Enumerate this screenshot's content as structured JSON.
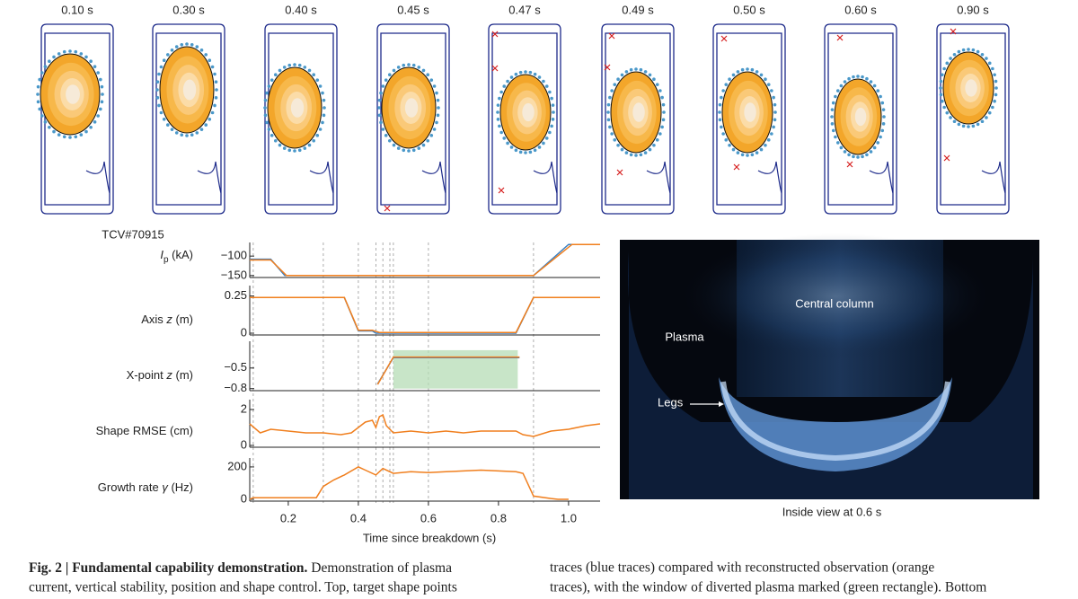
{
  "snapshots": {
    "times": [
      {
        "value": 0.1,
        "label": "0.10 s"
      },
      {
        "value": 0.3,
        "label": "0.30 s"
      },
      {
        "value": 0.4,
        "label": "0.40 s"
      },
      {
        "value": 0.45,
        "label": "0.45 s"
      },
      {
        "value": 0.47,
        "label": "0.47 s"
      },
      {
        "value": 0.49,
        "label": "0.49 s"
      },
      {
        "value": 0.5,
        "label": "0.50 s"
      },
      {
        "value": 0.6,
        "label": "0.60 s"
      },
      {
        "value": 0.9,
        "label": "0.90 s"
      }
    ]
  },
  "traces": {
    "shot": "TCV#70915",
    "xlim": [
      0.09,
      1.09
    ],
    "xticks": [
      0.2,
      0.4,
      0.6,
      0.8,
      {
        "value": 1,
        "label": "1.0"
      }
    ],
    "xlabel": "Time since breakdown (s)",
    "panels": [
      {
        "label": {
          "symbol": "I",
          "subscript": "p",
          "unit": " (kA)"
        },
        "ylim": [
          -155,
          -65
        ],
        "yticks": [
          {
            "value": -100,
            "label": "−100"
          },
          {
            "value": -150,
            "label": "−150"
          }
        ],
        "series": [
          {
            "color": "#3a7fc1",
            "x": [
              0.09,
              0.15,
              0.19,
              0.9,
              1.0,
              1.09
            ],
            "values": [
              -108,
              -108,
              -150,
              -150,
              -70,
              -70
            ]
          },
          {
            "color": "#f07f1e",
            "x": [
              0.09,
              0.15,
              0.195,
              0.9,
              1.01,
              1.09
            ],
            "values": [
              -110,
              -110,
              -150,
              -150,
              -70,
              -70
            ]
          }
        ]
      },
      {
        "label": {
          "text": "Axis ",
          "var": "z",
          "unit": " (m)"
        },
        "ylim": [
          -0.012,
          0.32
        ],
        "yticks": [
          0.25,
          0
        ],
        "series": [
          {
            "color": "#3a7fc1",
            "x": [
              0.09,
              0.36,
              0.4,
              0.44,
              0.45,
              0.85,
              0.9,
              1.09
            ],
            "values": [
              0.24,
              0.24,
              0.015,
              0.015,
              0,
              0,
              0.24,
              0.24
            ]
          },
          {
            "color": "#f07f1e",
            "x": [
              0.09,
              0.36,
              0.4,
              0.44,
              0.46,
              0.85,
              0.9,
              1.09
            ],
            "values": [
              0.24,
              0.24,
              0.02,
              0.02,
              0.005,
              0.005,
              0.24,
              0.24
            ]
          }
        ]
      },
      {
        "label": {
          "text": "X-point ",
          "var": "z",
          "unit": " (m)"
        },
        "ylim": [
          -0.83,
          -0.11
        ],
        "yticks": [
          {
            "value": -0.5,
            "label": "−0.5"
          },
          {
            "value": -0.8,
            "label": "−0.8"
          }
        ],
        "window": [
          0.5,
          0.855,
          -0.8,
          -0.24
        ],
        "series": [
          {
            "color": "#3a7fc1",
            "x": [
              0.455,
              0.5,
              0.86
            ],
            "values": [
              -0.73,
              -0.35,
              -0.35
            ]
          },
          {
            "color": "#f07f1e",
            "x": [
              0.455,
              0.5,
              0.86
            ],
            "values": [
              -0.74,
              -0.34,
              -0.34
            ]
          }
        ]
      },
      {
        "label": {
          "text": "Shape RMSE (cm)"
        },
        "ylim": [
          -0.1,
          2.55
        ],
        "yticks": [
          2,
          0
        ],
        "series": [
          {
            "color": "#f07f1e",
            "x": [
              0.09,
              0.12,
              0.15,
              0.2,
              0.25,
              0.3,
              0.35,
              0.38,
              0.4,
              0.42,
              0.44,
              0.45,
              0.46,
              0.47,
              0.48,
              0.5,
              0.55,
              0.6,
              0.65,
              0.7,
              0.75,
              0.8,
              0.85,
              0.87,
              0.9,
              0.95,
              1.0,
              1.05,
              1.09
            ],
            "values": [
              1.2,
              0.7,
              0.9,
              0.8,
              0.7,
              0.7,
              0.6,
              0.7,
              1.0,
              1.3,
              1.4,
              1.0,
              1.6,
              1.7,
              1.1,
              0.7,
              0.8,
              0.7,
              0.8,
              0.7,
              0.8,
              0.8,
              0.8,
              0.6,
              0.5,
              0.8,
              0.9,
              1.1,
              1.2
            ]
          }
        ]
      },
      {
        "label": {
          "text": "Growth rate ",
          "var": "γ",
          "unit": " (Hz)"
        },
        "ylim": [
          -11,
          255
        ],
        "yticks": [
          200,
          0
        ],
        "series": [
          {
            "color": "#f07f1e",
            "x": [
              0.09,
              0.1,
              0.28,
              0.3,
              0.33,
              0.36,
              0.4,
              0.42,
              0.45,
              0.47,
              0.5,
              0.55,
              0.6,
              0.65,
              0.7,
              0.75,
              0.8,
              0.85,
              0.87,
              0.9,
              0.95,
              0.97,
              1.0
            ],
            "values": [
              0,
              10,
              10,
              80,
              120,
              150,
              200,
              180,
              150,
              190,
              160,
              170,
              165,
              170,
              175,
              180,
              175,
              170,
              160,
              20,
              5,
              0,
              0
            ]
          }
        ]
      }
    ]
  },
  "photo": {
    "labels": [
      "Central column",
      "Plasma",
      "Legs"
    ],
    "caption": "Inside view at 0.6 s"
  },
  "caption": {
    "left": {
      "bold": "Fig. 2 | Fundamental capability demonstration.",
      "lines": [
        " Demonstration of plasma",
        "current, vertical stability, position and shape control. Top, target shape points"
      ]
    },
    "right": {
      "lines": [
        "traces (blue traces) compared with reconstructed observation (orange",
        "traces), with the window of diverted plasma marked (green rectangle). Bottom"
      ]
    }
  }
}
